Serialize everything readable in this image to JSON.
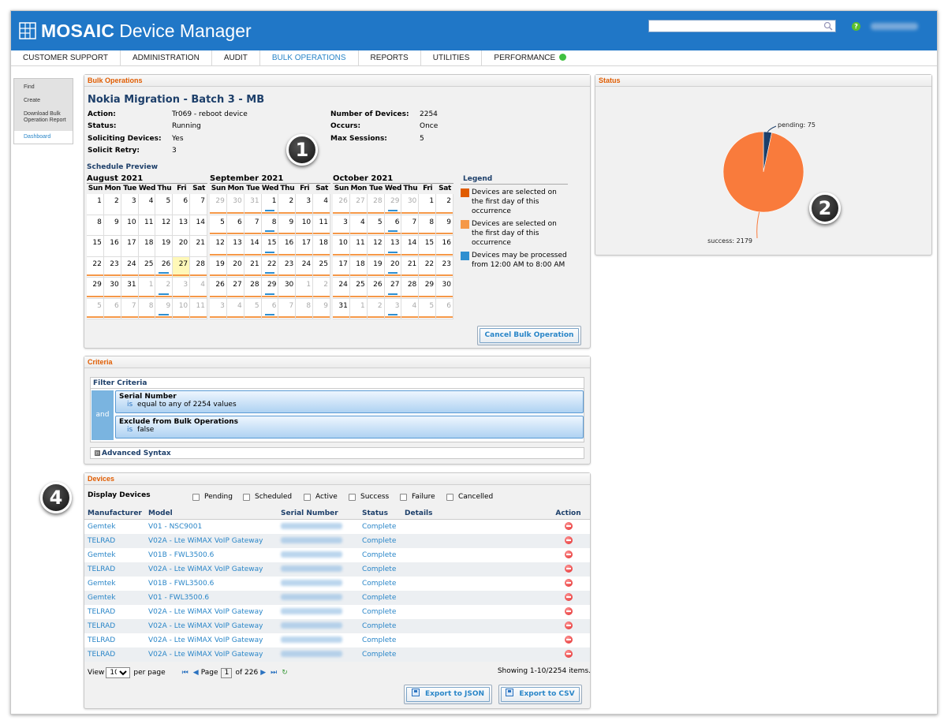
{
  "app": {
    "brand": "MOSAIC",
    "product": "Device Manager"
  },
  "nav": [
    {
      "label": "CUSTOMER SUPPORT"
    },
    {
      "label": "ADMINISTRATION"
    },
    {
      "label": "AUDIT"
    },
    {
      "label": "BULK OPERATIONS",
      "active": true
    },
    {
      "label": "REPORTS"
    },
    {
      "label": "UTILITIES"
    },
    {
      "label": "PERFORMANCE"
    }
  ],
  "sidebar": {
    "items": [
      "Find",
      "Create",
      "Download Bulk Operation Report"
    ],
    "dashboard": "Dashboard"
  },
  "bulk": {
    "panel_title": "Bulk Operations",
    "title": "Nokia Migration - Batch 3 - MB",
    "left": [
      {
        "label": "Action:",
        "value": "Tr069 - reboot device"
      },
      {
        "label": "Status:",
        "value": "Running"
      },
      {
        "label": "Soliciting Devices:",
        "value": "Yes"
      },
      {
        "label": "Solicit Retry:",
        "value": "3"
      }
    ],
    "right": [
      {
        "label": "Number of Devices:",
        "value": "2254"
      },
      {
        "label": "Occurs:",
        "value": "Once"
      },
      {
        "label": "Max Sessions:",
        "value": "5"
      }
    ],
    "schedule_title": "Schedule Preview",
    "weekdays": [
      "Sun",
      "Mon",
      "Tue",
      "Wed",
      "Thu",
      "Fri",
      "Sat"
    ],
    "calendars": [
      {
        "title": "August 2021",
        "start": 0,
        "days": 31,
        "prev_days": 31,
        "orange_from_row": 3,
        "blue": [
          25,
          32,
          39
        ],
        "today": 27
      },
      {
        "title": "September 2021",
        "start": 3,
        "days": 30,
        "prev_days": 31,
        "orange_from_row": 0,
        "blue": [
          3,
          10,
          17,
          24,
          31,
          38
        ],
        "today": -1
      },
      {
        "title": "October 2021",
        "start": 5,
        "days": 31,
        "prev_days": 30,
        "orange_from_row": 0,
        "blue": [
          3,
          10,
          17,
          24,
          31,
          38
        ],
        "today": -1
      }
    ],
    "legend_title": "Legend",
    "legend": [
      {
        "color": "#e05c00",
        "text": "Devices are selected on the first day of this occurrence"
      },
      {
        "color": "#f59848",
        "text": "Devices are selected on the first day of this occurrence"
      },
      {
        "color": "#2f8fd0",
        "text": "Devices may be processed from 12:00 AM to 8:00 AM"
      }
    ],
    "cancel_label": "Cancel Bulk Operation"
  },
  "criteria": {
    "panel_title": "Criteria",
    "filter_title": "Filter Criteria",
    "and_label": "and",
    "items": [
      {
        "field": "Serial Number",
        "op": "is",
        "detail": "equal to  any of 2254 values"
      },
      {
        "field": "Exclude from Bulk Operations",
        "op": "is",
        "detail": "false"
      }
    ],
    "advanced_label": "Advanced Syntax",
    "advanced_icon": "⊞"
  },
  "devices": {
    "panel_title": "Devices",
    "display_label": "Display Devices",
    "filters": [
      "Pending",
      "Scheduled",
      "Active",
      "Success",
      "Failure",
      "Cancelled"
    ],
    "headers": {
      "manufacturer": "Manufacturer",
      "model": "Model",
      "serial": "Serial Number",
      "status": "Status",
      "details": "Details",
      "action": "Action"
    },
    "rows": [
      {
        "manufacturer": "Gemtek",
        "model": "V01 - NSC9001",
        "status": "Complete"
      },
      {
        "manufacturer": "TELRAD",
        "model": "V02A - Lte WiMAX VoIP Gateway",
        "status": "Complete"
      },
      {
        "manufacturer": "Gemtek",
        "model": "V01B - FWL3500.6",
        "status": "Complete"
      },
      {
        "manufacturer": "TELRAD",
        "model": "V02A - Lte WiMAX VoIP Gateway",
        "status": "Complete"
      },
      {
        "manufacturer": "Gemtek",
        "model": "V01B - FWL3500.6",
        "status": "Complete"
      },
      {
        "manufacturer": "Gemtek",
        "model": "V01 - FWL3500.6",
        "status": "Complete"
      },
      {
        "manufacturer": "TELRAD",
        "model": "V02A - Lte WiMAX VoIP Gateway",
        "status": "Complete"
      },
      {
        "manufacturer": "TELRAD",
        "model": "V02A - Lte WiMAX VoIP Gateway",
        "status": "Complete"
      },
      {
        "manufacturer": "TELRAD",
        "model": "V02A - Lte WiMAX VoIP Gateway",
        "status": "Complete"
      },
      {
        "manufacturer": "TELRAD",
        "model": "V02A - Lte WiMAX VoIP Gateway",
        "status": "Complete"
      }
    ],
    "pager": {
      "view_label": "View",
      "per_page_value": "10",
      "per_page_label": "per page",
      "page_label": "Page",
      "page_value": "1",
      "of_label": "of 226",
      "showing": "Showing 1-10/2254 items."
    },
    "export_json": "Export to JSON",
    "export_csv": "Export to CSV"
  },
  "status": {
    "panel_title": "Status"
  },
  "chart_data": {
    "type": "pie",
    "slices": [
      {
        "label": "pending: 75",
        "value": 75,
        "color": "#1d3f6a"
      },
      {
        "label": "success: 2179",
        "value": 2179,
        "color": "#f97b3c"
      }
    ]
  },
  "annotations": [
    "1",
    "2",
    "4"
  ]
}
